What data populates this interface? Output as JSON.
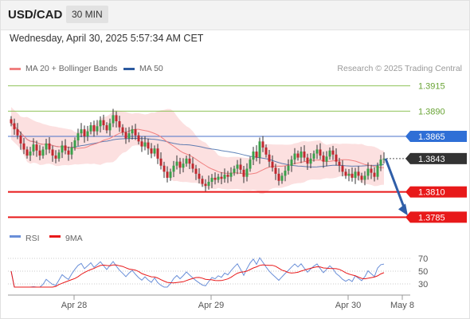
{
  "header": {
    "symbol": "USD/CAD",
    "timeframe": "30 MIN"
  },
  "datetime": "Wednesday, April 30, 2025 5:57:34 AM CET",
  "legend": {
    "ma_label": "MA 20 + Bollinger Bands",
    "ma50_label": "MA 50",
    "credit": "Research © 2025 Trading Central"
  },
  "colors": {
    "ma20": "#f08080",
    "ma50": "#2c5aa0",
    "band": "#fbdada",
    "up": "#3aa04a",
    "down": "#c0282f",
    "support": "#e8191a",
    "resistance": "#8fc25a",
    "pivot": "#4a72c9",
    "current": "#333333",
    "rsi": "#6a8fd8",
    "rsi_ma": "#e8191a"
  },
  "chart_data": [
    {
      "type": "candlestick",
      "title": "USD/CAD 30 MIN",
      "x_ticks": [
        "Apr 28",
        "Apr 29",
        "Apr 30",
        "May 8"
      ],
      "ylim": [
        1.3775,
        1.3925
      ],
      "levels": [
        {
          "label": "1.3915",
          "value": 1.3915,
          "kind": "resistance"
        },
        {
          "label": "1.3890",
          "value": 1.389,
          "kind": "resistance"
        },
        {
          "label": "1.3865",
          "value": 1.3865,
          "kind": "pivot"
        },
        {
          "label": "1.3843",
          "value": 1.3843,
          "kind": "current"
        },
        {
          "label": "1.3810",
          "value": 1.381,
          "kind": "support"
        },
        {
          "label": "1.3785",
          "value": 1.3785,
          "kind": "support"
        }
      ],
      "close": [
        1.3878,
        1.3872,
        1.3866,
        1.3858,
        1.3852,
        1.3846,
        1.385,
        1.3857,
        1.3851,
        1.3846,
        1.3852,
        1.3858,
        1.3852,
        1.3846,
        1.3843,
        1.3849,
        1.3856,
        1.3851,
        1.3847,
        1.3854,
        1.3861,
        1.3868,
        1.3872,
        1.3865,
        1.387,
        1.3876,
        1.387,
        1.3875,
        1.3881,
        1.3876,
        1.3871,
        1.3878,
        1.3886,
        1.388,
        1.3874,
        1.3869,
        1.3863,
        1.3868,
        1.3872,
        1.3866,
        1.386,
        1.3855,
        1.3859,
        1.3853,
        1.3848,
        1.3853,
        1.3843,
        1.3836,
        1.383,
        1.3824,
        1.383,
        1.3836,
        1.384,
        1.3834,
        1.3838,
        1.3843,
        1.3838,
        1.3833,
        1.3828,
        1.3823,
        1.3818,
        1.3816,
        1.382,
        1.3824,
        1.3822,
        1.3825,
        1.3823,
        1.3827,
        1.3825,
        1.3829,
        1.3833,
        1.3837,
        1.3832,
        1.3825,
        1.3833,
        1.3842,
        1.385,
        1.3844,
        1.386,
        1.3854,
        1.3847,
        1.384,
        1.3834,
        1.3828,
        1.3821,
        1.3826,
        1.3831,
        1.3836,
        1.3842,
        1.3848,
        1.3844,
        1.385,
        1.3844,
        1.3838,
        1.3843,
        1.3848,
        1.3852,
        1.3846,
        1.384,
        1.3845,
        1.3851,
        1.3847,
        1.384,
        1.3836,
        1.383,
        1.3826,
        1.3828,
        1.3824,
        1.383,
        1.3826,
        1.3822,
        1.3826,
        1.3833,
        1.3829,
        1.3825,
        1.3836,
        1.3842,
        1.3843
      ],
      "rsi_ticks": [
        70,
        50,
        30
      ],
      "rsi_legend": [
        "RSI",
        "9MA"
      ]
    }
  ]
}
